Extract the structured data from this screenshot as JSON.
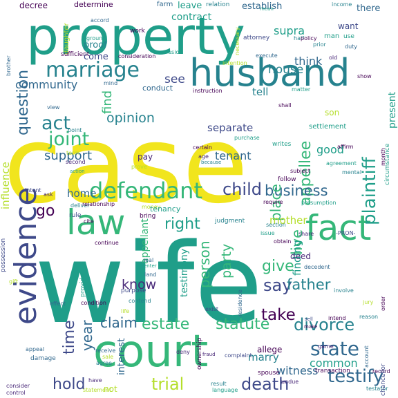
{
  "cloud": {
    "palette": {
      "yellow": "#f1e51d",
      "lime": "#b5de2b",
      "green": "#6ece58",
      "teal_green": "#35b779",
      "teal": "#1f9e89",
      "cyan": "#26828e",
      "blue": "#31688e",
      "indigo": "#3e4989",
      "purple": "#482878",
      "dark_purple": "#440154"
    },
    "words": [
      {
        "text": "case",
        "color": "yellow"
      },
      {
        "text": "wife",
        "color": "teal"
      },
      {
        "text": "property",
        "color": "teal"
      },
      {
        "text": "court",
        "color": "teal_green"
      },
      {
        "text": "husband",
        "color": "cyan"
      },
      {
        "text": "evidence",
        "color": "indigo"
      },
      {
        "text": "law",
        "color": "teal_green"
      },
      {
        "text": "fact",
        "color": "teal_green"
      },
      {
        "text": "defendant",
        "color": "teal_green"
      },
      {
        "text": "marriage",
        "color": "cyan"
      },
      {
        "text": "plaintiff",
        "color": "teal"
      },
      {
        "text": "appellee",
        "color": "teal_green"
      },
      {
        "text": "joint",
        "color": "teal_green"
      },
      {
        "text": "act",
        "color": "cyan"
      },
      {
        "text": "question",
        "color": "blue"
      },
      {
        "text": "state",
        "color": "blue"
      },
      {
        "text": "testify",
        "color": "blue"
      },
      {
        "text": "estate",
        "color": "teal_green"
      },
      {
        "text": "statute",
        "color": "teal_green"
      },
      {
        "text": "divorce",
        "color": "cyan"
      },
      {
        "text": "business",
        "color": "blue"
      },
      {
        "text": "child",
        "color": "indigo"
      },
      {
        "text": "trial",
        "color": "lime"
      },
      {
        "text": "death",
        "color": "indigo"
      },
      {
        "text": "time",
        "color": "indigo"
      },
      {
        "text": "claim",
        "color": "blue"
      },
      {
        "text": "say",
        "color": "indigo"
      },
      {
        "text": "father",
        "color": "cyan"
      },
      {
        "text": "give",
        "color": "teal_green"
      },
      {
        "text": "take",
        "color": "dark_purple"
      },
      {
        "text": "hold",
        "color": "indigo"
      },
      {
        "text": "year",
        "color": "blue"
      },
      {
        "text": "right",
        "color": "teal"
      },
      {
        "text": "person",
        "color": "teal_green"
      },
      {
        "text": "party",
        "color": "teal_green"
      },
      {
        "text": "know",
        "color": "purple"
      },
      {
        "text": "live",
        "color": "teal_green"
      },
      {
        "text": "place",
        "color": "teal_green"
      },
      {
        "text": "opinion",
        "color": "cyan"
      },
      {
        "text": "support",
        "color": "blue"
      },
      {
        "text": "find",
        "color": "teal_green"
      },
      {
        "text": "community",
        "color": "blue"
      },
      {
        "text": "house",
        "color": "cyan"
      },
      {
        "text": "tenant",
        "color": "blue"
      },
      {
        "text": "good",
        "color": "teal"
      },
      {
        "text": "separate",
        "color": "indigo"
      },
      {
        "text": "tell",
        "color": "cyan"
      },
      {
        "text": "appellant",
        "color": "teal_green"
      },
      {
        "text": "testimony",
        "color": "teal"
      },
      {
        "text": "witness",
        "color": "blue"
      },
      {
        "text": "common",
        "color": "teal"
      },
      {
        "text": "interest",
        "color": "blue"
      },
      {
        "text": "marry",
        "color": "cyan"
      },
      {
        "text": "mother",
        "color": "lime"
      },
      {
        "text": "finding",
        "color": "teal"
      },
      {
        "text": "go",
        "color": "dark_purple"
      },
      {
        "text": "home",
        "color": "blue"
      },
      {
        "text": "see",
        "color": "indigo"
      },
      {
        "text": "supra",
        "color": "teal"
      },
      {
        "text": "think",
        "color": "blue"
      },
      {
        "text": "proof",
        "color": "cyan"
      },
      {
        "text": "come",
        "color": "indigo"
      },
      {
        "text": "influence",
        "color": "lime"
      },
      {
        "text": "present",
        "color": "teal"
      },
      {
        "text": "contract",
        "color": "teal"
      },
      {
        "text": "establish",
        "color": "blue"
      },
      {
        "text": "leave",
        "color": "teal"
      },
      {
        "text": "decree",
        "color": "dark_purple"
      },
      {
        "text": "determine",
        "color": "dark_purple"
      },
      {
        "text": "farm",
        "color": "blue"
      },
      {
        "text": "relation",
        "color": "cyan"
      },
      {
        "text": "income",
        "color": "cyan"
      },
      {
        "text": "there",
        "color": "blue"
      },
      {
        "text": "want",
        "color": "indigo"
      },
      {
        "text": "accord",
        "color": "blue"
      },
      {
        "text": "ground",
        "color": "teal"
      },
      {
        "text": "daughter",
        "color": "lime"
      },
      {
        "text": "sufficient",
        "color": "dark_purple"
      },
      {
        "text": "consideration",
        "color": "dark_purple"
      },
      {
        "text": "work",
        "color": "dark_purple"
      },
      {
        "text": "conclusion",
        "color": "teal"
      },
      {
        "text": "attorney",
        "color": "indigo"
      },
      {
        "text": "necessary",
        "color": "lime"
      },
      {
        "text": "execute",
        "color": "blue"
      },
      {
        "text": "mean",
        "color": "teal"
      },
      {
        "text": "prior",
        "color": "cyan"
      },
      {
        "text": "half",
        "color": "cyan"
      },
      {
        "text": "policy",
        "color": "dark_purple"
      },
      {
        "text": "man",
        "color": "teal"
      },
      {
        "text": "use",
        "color": "teal"
      },
      {
        "text": "duty",
        "color": "blue"
      },
      {
        "text": "old",
        "color": "purple"
      },
      {
        "text": "intention",
        "color": "lime"
      },
      {
        "text": "brother",
        "color": "blue"
      },
      {
        "text": "mind",
        "color": "blue"
      },
      {
        "text": "conduct",
        "color": "blue"
      },
      {
        "text": "instruction",
        "color": "dark_purple"
      },
      {
        "text": "matter",
        "color": "teal"
      },
      {
        "text": "show",
        "color": "dark_purple"
      },
      {
        "text": "son",
        "color": "lime"
      },
      {
        "text": "settlement",
        "color": "teal"
      },
      {
        "text": "purchase",
        "color": "teal"
      },
      {
        "text": "writes",
        "color": "teal"
      },
      {
        "text": "shall",
        "color": "dark_purple"
      },
      {
        "text": "circumstance",
        "color": "teal"
      },
      {
        "text": "view",
        "color": "blue"
      },
      {
        "text": "point",
        "color": "cyan"
      },
      {
        "text": "second",
        "color": "purple"
      },
      {
        "text": "pay",
        "color": "purple"
      },
      {
        "text": "prove",
        "color": "lime"
      },
      {
        "text": "term",
        "color": "lime"
      },
      {
        "text": "because",
        "color": "cyan"
      },
      {
        "text": "certain",
        "color": "dark_purple"
      },
      {
        "text": "age",
        "color": "purple"
      },
      {
        "text": "affirm",
        "color": "dark_purple"
      },
      {
        "text": "agreement",
        "color": "teal"
      },
      {
        "text": "mental",
        "color": "cyan"
      },
      {
        "text": "month",
        "color": "dark_purple"
      },
      {
        "text": "subject",
        "color": "dark_purple"
      },
      {
        "text": "intent",
        "color": "indigo"
      },
      {
        "text": "ask",
        "color": "purple"
      },
      {
        "text": "deliver",
        "color": "cyan"
      },
      {
        "text": "action",
        "color": "teal"
      },
      {
        "text": "follow",
        "color": "dark_purple"
      },
      {
        "text": "require",
        "color": "dark_purple"
      },
      {
        "text": "presumption",
        "color": "teal"
      },
      {
        "text": "relationship",
        "color": "dark_purple"
      },
      {
        "text": "money",
        "color": "lime"
      },
      {
        "text": "rule",
        "color": "indigo"
      },
      {
        "text": "tenancy",
        "color": "teal"
      },
      {
        "text": "bring",
        "color": "dark_purple"
      },
      {
        "text": "possession",
        "color": "indigo"
      },
      {
        "text": "gift",
        "color": "lime"
      },
      {
        "text": "cite",
        "color": "dark_purple"
      },
      {
        "text": "judgment",
        "color": "cyan"
      },
      {
        "text": "section",
        "color": "cyan"
      },
      {
        "text": "issue",
        "color": "teal"
      },
      {
        "text": "share",
        "color": "purple"
      },
      {
        "text": "-PRON-",
        "color": "indigo"
      },
      {
        "text": "obtain",
        "color": "dark_purple"
      },
      {
        "text": "continue",
        "color": "dark_purple"
      },
      {
        "text": "real",
        "color": "blue"
      },
      {
        "text": "enter",
        "color": "teal"
      },
      {
        "text": "land",
        "color": "blue"
      },
      {
        "text": "deed",
        "color": "purple"
      },
      {
        "text": "decedent",
        "color": "blue"
      },
      {
        "text": "provide",
        "color": "teal"
      },
      {
        "text": "purpose",
        "color": "indigo"
      },
      {
        "text": "effect",
        "color": "blue"
      },
      {
        "text": "condition",
        "color": "dark_purple"
      },
      {
        "text": "contend",
        "color": "cyan"
      },
      {
        "text": "life",
        "color": "lime"
      },
      {
        "text": "exist",
        "color": "indigo"
      },
      {
        "text": "residence",
        "color": "blue"
      },
      {
        "text": "involve",
        "color": "cyan"
      },
      {
        "text": "jury",
        "color": "lime"
      },
      {
        "text": "intend",
        "color": "dark_purple"
      },
      {
        "text": "reason",
        "color": "cyan"
      },
      {
        "text": "sell",
        "color": "indigo"
      },
      {
        "text": "make",
        "color": "dark_purple"
      },
      {
        "text": "order",
        "color": "dark_purple"
      },
      {
        "text": "appeal",
        "color": "blue"
      },
      {
        "text": "damage",
        "color": "blue"
      },
      {
        "text": "receive",
        "color": "blue"
      },
      {
        "text": "sale",
        "color": "lime"
      },
      {
        "text": "agree",
        "color": "cyan"
      },
      {
        "text": "ownership",
        "color": "dark_purple"
      },
      {
        "text": "deny",
        "color": "purple"
      },
      {
        "text": "fraud",
        "color": "purple"
      },
      {
        "text": "complaint",
        "color": "indigo"
      },
      {
        "text": "allege",
        "color": "dark_purple"
      },
      {
        "text": "spouse",
        "color": "dark_purple"
      },
      {
        "text": "game",
        "color": "purple"
      },
      {
        "text": "transaction",
        "color": "dark_purple"
      },
      {
        "text": "record",
        "color": "dark_purple"
      },
      {
        "text": "account",
        "color": "blue"
      },
      {
        "text": "consider",
        "color": "purple"
      },
      {
        "text": "control",
        "color": "purple"
      },
      {
        "text": "have",
        "color": "purple"
      },
      {
        "text": "statement",
        "color": "lime"
      },
      {
        "text": "result",
        "color": "cyan"
      },
      {
        "text": "language",
        "color": "teal"
      },
      {
        "text": "undue",
        "color": "purple"
      },
      {
        "text": "testator",
        "color": "cyan"
      },
      {
        "text": "chancellor",
        "color": "indigo"
      },
      {
        "text": "not",
        "color": "lime"
      }
    ]
  }
}
